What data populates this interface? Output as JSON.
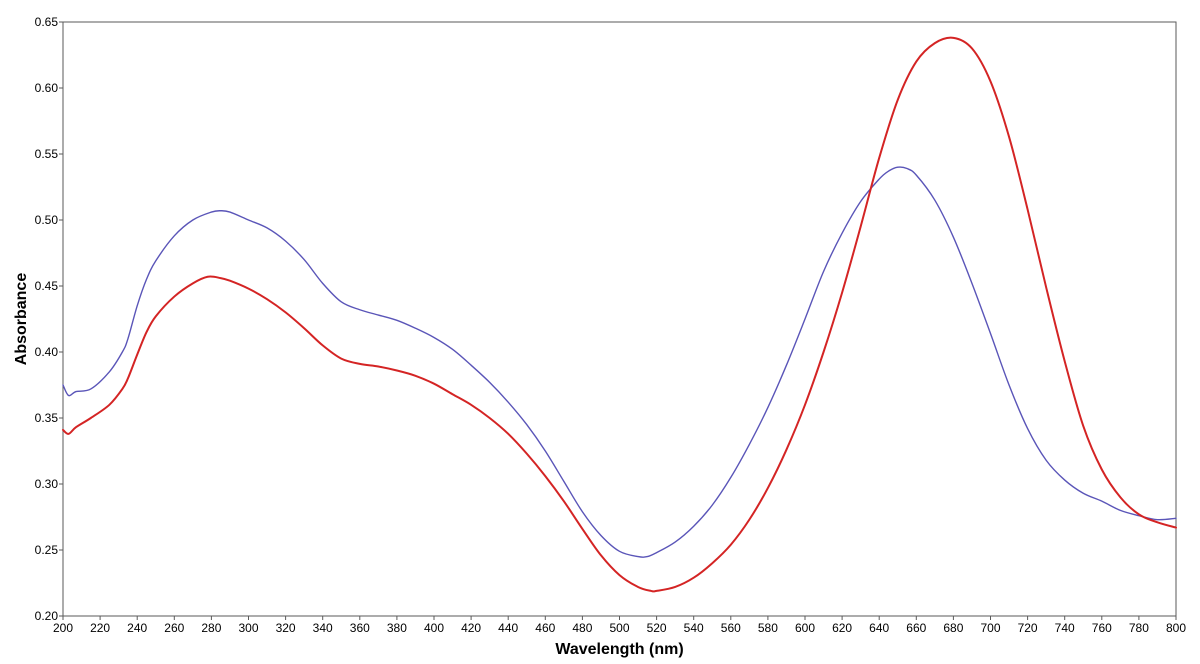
{
  "chart_data": {
    "type": "line",
    "title": "",
    "xlabel": "Wavelength (nm)",
    "ylabel": "Absorbance",
    "xlim": [
      200,
      800
    ],
    "ylim": [
      0.2,
      0.65
    ],
    "xticks": [
      "200",
      "220",
      "240",
      "260",
      "280",
      "300",
      "320",
      "340",
      "360",
      "380",
      "400",
      "420",
      "440",
      "460",
      "480",
      "500",
      "520",
      "540",
      "560",
      "580",
      "600",
      "620",
      "640",
      "660",
      "680",
      "700",
      "720",
      "740",
      "760",
      "780",
      "800"
    ],
    "yticks": [
      "0.20",
      "0.25",
      "0.30",
      "0.35",
      "0.40",
      "0.45",
      "0.50",
      "0.55",
      "0.60",
      "0.65"
    ],
    "grid": false,
    "legend": "none",
    "series": [
      {
        "color": "#5a55b8",
        "x": [
          200,
          203,
          207,
          215,
          225,
          232,
          235,
          240,
          245,
          250,
          260,
          270,
          280,
          285,
          290,
          300,
          310,
          320,
          330,
          340,
          350,
          360,
          370,
          380,
          390,
          400,
          410,
          420,
          430,
          440,
          450,
          460,
          470,
          480,
          490,
          500,
          510,
          515,
          520,
          530,
          540,
          550,
          560,
          570,
          580,
          590,
          600,
          610,
          620,
          630,
          640,
          645,
          650,
          655,
          660,
          670,
          680,
          690,
          700,
          710,
          720,
          730,
          740,
          750,
          760,
          770,
          780,
          790,
          800
        ],
        "y": [
          0.375,
          0.367,
          0.37,
          0.372,
          0.385,
          0.4,
          0.41,
          0.435,
          0.455,
          0.469,
          0.488,
          0.5,
          0.506,
          0.507,
          0.506,
          0.5,
          0.494,
          0.484,
          0.47,
          0.452,
          0.438,
          0.432,
          0.428,
          0.424,
          0.418,
          0.411,
          0.402,
          0.39,
          0.377,
          0.362,
          0.345,
          0.325,
          0.302,
          0.279,
          0.261,
          0.249,
          0.245,
          0.245,
          0.248,
          0.256,
          0.268,
          0.284,
          0.305,
          0.33,
          0.358,
          0.39,
          0.425,
          0.461,
          0.49,
          0.514,
          0.531,
          0.537,
          0.54,
          0.539,
          0.534,
          0.515,
          0.487,
          0.452,
          0.414,
          0.375,
          0.342,
          0.318,
          0.303,
          0.293,
          0.287,
          0.28,
          0.276,
          0.273,
          0.274
        ]
      },
      {
        "color": "#d42424",
        "x": [
          200,
          203,
          207,
          215,
          225,
          232,
          235,
          240,
          245,
          250,
          260,
          270,
          278,
          285,
          290,
          300,
          310,
          320,
          330,
          340,
          350,
          360,
          370,
          380,
          390,
          400,
          410,
          420,
          430,
          440,
          450,
          460,
          470,
          480,
          490,
          500,
          510,
          517,
          520,
          530,
          540,
          550,
          560,
          570,
          580,
          590,
          600,
          610,
          620,
          630,
          640,
          650,
          660,
          670,
          680,
          690,
          700,
          710,
          720,
          730,
          740,
          750,
          760,
          770,
          780,
          790,
          800
        ],
        "y": [
          0.341,
          0.338,
          0.343,
          0.35,
          0.36,
          0.372,
          0.38,
          0.398,
          0.415,
          0.427,
          0.442,
          0.452,
          0.457,
          0.456,
          0.454,
          0.448,
          0.44,
          0.43,
          0.418,
          0.405,
          0.395,
          0.391,
          0.389,
          0.386,
          0.382,
          0.376,
          0.368,
          0.36,
          0.35,
          0.338,
          0.323,
          0.306,
          0.287,
          0.266,
          0.246,
          0.231,
          0.222,
          0.219,
          0.219,
          0.222,
          0.229,
          0.24,
          0.254,
          0.273,
          0.297,
          0.326,
          0.36,
          0.4,
          0.445,
          0.495,
          0.547,
          0.591,
          0.62,
          0.634,
          0.638,
          0.63,
          0.605,
          0.563,
          0.508,
          0.449,
          0.393,
          0.344,
          0.311,
          0.29,
          0.277,
          0.271,
          0.267
        ]
      }
    ]
  }
}
